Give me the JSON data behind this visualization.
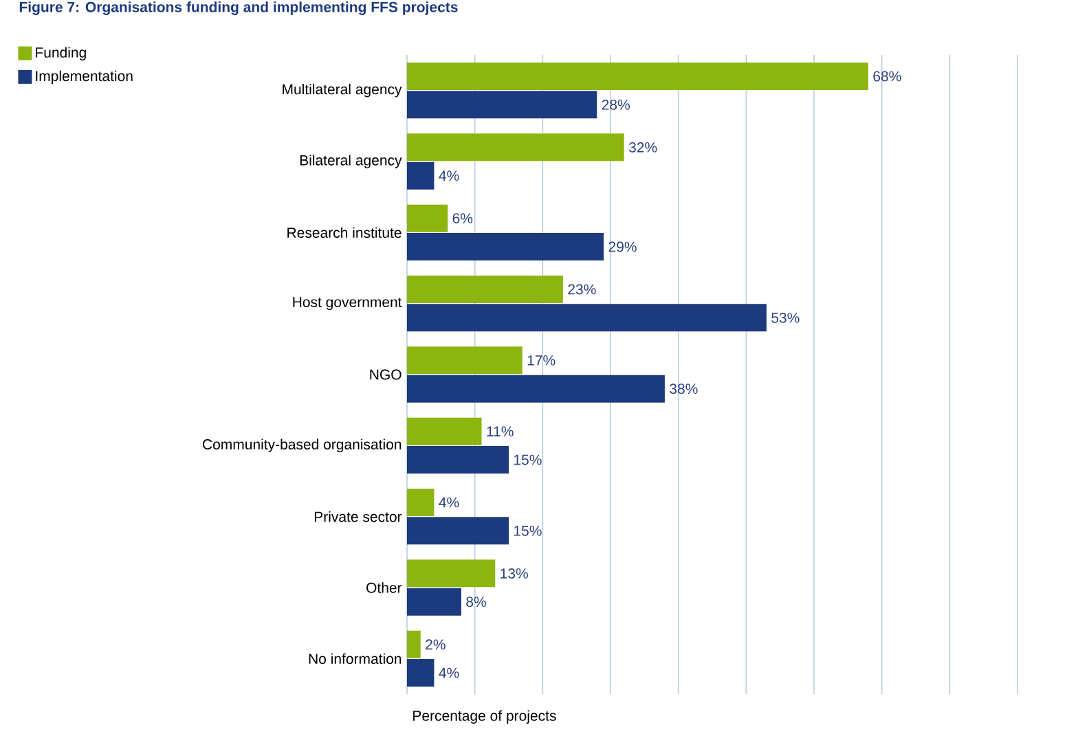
{
  "chart_data": {
    "type": "bar",
    "orientation": "horizontal",
    "title": "Figure 7: Organisations funding and implementing FFS projects",
    "xlabel": "Percentage of projects",
    "categories": [
      "Multilateral agency",
      "Bilateral agency",
      "Research institute",
      "Host government",
      "NGO",
      "Community-based organisation",
      "Private sector",
      "Other",
      "No information"
    ],
    "series": [
      {
        "name": "Funding",
        "color": "#8db510",
        "values": [
          68,
          32,
          6,
          23,
          17,
          11,
          4,
          13,
          2
        ],
        "value_labels": [
          "68%",
          "32%",
          "6%",
          "23%",
          "17%",
          "11%",
          "4%",
          "13%",
          "2%"
        ]
      },
      {
        "name": "Implementation",
        "color": "#1c3a7e",
        "values": [
          28,
          4,
          29,
          53,
          38,
          15,
          15,
          8,
          4
        ],
        "value_labels": [
          "28%",
          "4%",
          "29%",
          "53%",
          "38%",
          "15%",
          "15%",
          "8%",
          "4%"
        ]
      }
    ],
    "xlim": [
      0,
      90
    ],
    "xticks": [
      {
        "value": 0,
        "label": null
      },
      {
        "value": 10,
        "label": null
      },
      {
        "value": 20,
        "label": null
      },
      {
        "value": 30,
        "label": null
      },
      {
        "value": 40,
        "label": null
      },
      {
        "value": 50,
        "label": null
      },
      {
        "value": 60,
        "label": null
      },
      {
        "value": 70,
        "label": null
      },
      {
        "value": 80,
        "label": null
      },
      {
        "value": 90,
        "label": null
      }
    ],
    "grid": "x",
    "legend": "top left",
    "tick_labels": "y"
  }
}
